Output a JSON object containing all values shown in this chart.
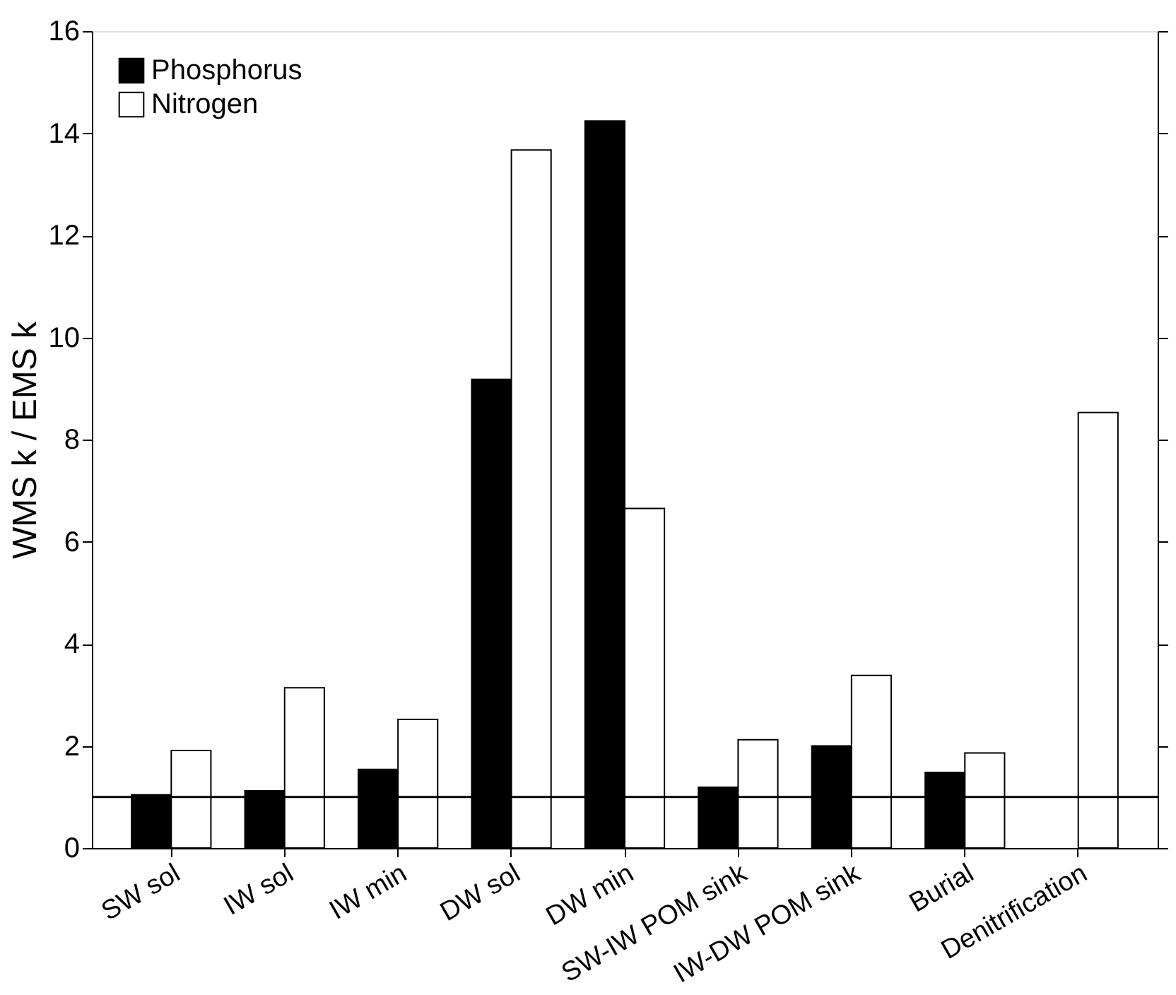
{
  "chart_data": {
    "type": "bar",
    "ylabel": "WMS k / EMS k",
    "categories": [
      "SW sol",
      "IW sol",
      "IW min",
      "DW sol",
      "DW min",
      "SW-IW POM sink",
      "IW-DW POM sink",
      "Burial",
      "Denitrification"
    ],
    "series": [
      {
        "name": "Phosphorus",
        "color": "#000000",
        "values": [
          1.04,
          1.12,
          1.54,
          9.18,
          14.24,
          1.19,
          2.0,
          1.48,
          null
        ]
      },
      {
        "name": "Nitrogen",
        "color": "#ffffff",
        "values": [
          1.91,
          3.14,
          2.52,
          13.67,
          6.65,
          2.12,
          3.38,
          1.86,
          8.53
        ]
      }
    ],
    "ylim": [
      0,
      16
    ],
    "yticks": [
      0,
      2,
      4,
      6,
      8,
      10,
      12,
      14,
      16
    ],
    "ref_lines": [
      {
        "axis": "y",
        "value": 1,
        "color": "#000000"
      }
    ],
    "legend": "top left",
    "grid": false
  }
}
